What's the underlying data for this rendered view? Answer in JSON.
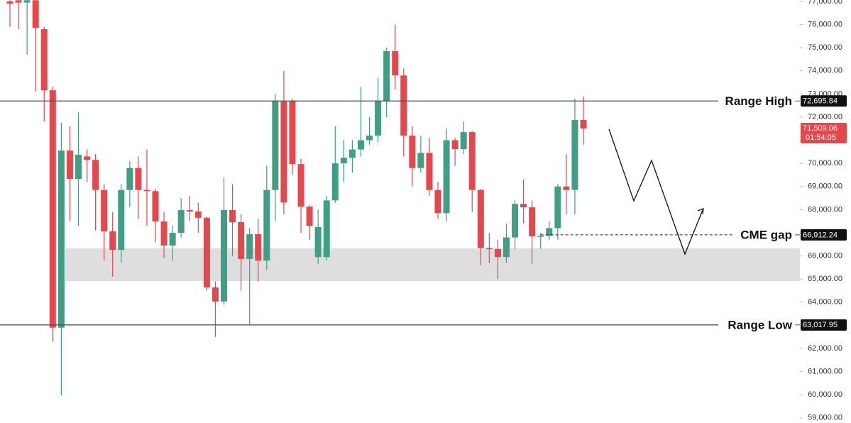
{
  "chart_data": {
    "type": "candlestick",
    "open": [
      77000,
      77050,
      76950,
      77050,
      75800,
      73160,
      62900,
      70550,
      69330,
      70300,
      70150,
      68850,
      67060,
      66260,
      68850,
      69800,
      68850,
      68800,
      67490,
      66450,
      67000,
      67980,
      67920,
      67650,
      64640,
      64030,
      67980,
      67460,
      65870,
      66940,
      65800,
      68850,
      72700,
      72700,
      69970,
      68130,
      65950,
      65950,
      68400,
      70000,
      70240,
      70600,
      71000,
      71200,
      72700,
      74850,
      73800,
      71200,
      69800,
      70450,
      68850,
      67850,
      71000,
      70620,
      71350,
      68850,
      66350,
      66300,
      65950,
      66800,
      68250,
      68100,
      66850,
      66870,
      67200,
      69000,
      68850,
      71880
    ],
    "high": [
      77050,
      77060,
      77060,
      77060,
      75900,
      73300,
      71750,
      71600,
      72200,
      70600,
      70400,
      69100,
      67900,
      69100,
      70100,
      70300,
      70600,
      68900,
      67900,
      67300,
      68500,
      68600,
      68300,
      67700,
      64900,
      69400,
      69100,
      67800,
      67200,
      67600,
      69900,
      73000,
      74000,
      72800,
      70200,
      68200,
      68000,
      68600,
      71600,
      71000,
      71000,
      73300,
      72000,
      73700,
      75000,
      76000,
      74100,
      71600,
      71200,
      71100,
      69200,
      71500,
      71100,
      71800,
      71400,
      68900,
      67000,
      66700,
      67400,
      68400,
      69300,
      68400,
      67000,
      67500,
      69100,
      70400,
      72800,
      72900
    ],
    "low": [
      75900,
      75800,
      74700,
      73100,
      71800,
      62300,
      59975,
      67500,
      67300,
      69200,
      67100,
      65800,
      65100,
      65700,
      68100,
      67600,
      67300,
      66600,
      65900,
      65800,
      66800,
      67500,
      67000,
      64500,
      62500,
      63900,
      66000,
      64500,
      63050,
      64900,
      65400,
      67500,
      67800,
      69500,
      67000,
      66700,
      65650,
      65800,
      68300,
      69200,
      69600,
      70300,
      70800,
      70900,
      72000,
      73200,
      70300,
      69000,
      69600,
      68600,
      67600,
      67500,
      69900,
      70400,
      67900,
      65600,
      65700,
      65000,
      65700,
      66300,
      67400,
      65650,
      66300,
      66700,
      66700,
      67800,
      67800,
      70800
    ],
    "close": [
      76900,
      76950,
      77050,
      75850,
      73160,
      62900,
      70550,
      69330,
      70370,
      70150,
      68850,
      67060,
      66260,
      68850,
      69800,
      68850,
      68800,
      67490,
      66450,
      67000,
      67980,
      67920,
      67650,
      64640,
      64030,
      67980,
      67460,
      65870,
      66940,
      65800,
      68850,
      72700,
      68310,
      69970,
      68130,
      67300,
      67250,
      68400,
      70000,
      70240,
      70600,
      71000,
      71200,
      72700,
      74850,
      73800,
      71200,
      69800,
      70450,
      68850,
      67850,
      71000,
      70620,
      71350,
      68850,
      66350,
      66300,
      65950,
      66800,
      68250,
      68100,
      66850,
      66870,
      67200,
      69000,
      68850,
      71880,
      71509.06
    ],
    "up_color": "#3f9e84",
    "down_color": "#e5474d",
    "ylim": [
      58780,
      77060
    ],
    "yticks": [
      {
        "value": 59000,
        "label": "59,000.00"
      },
      {
        "value": 60000,
        "label": "60,000.00"
      },
      {
        "value": 61000,
        "label": "61,000.00"
      },
      {
        "value": 62000,
        "label": "62,000.00"
      },
      {
        "value": 63000,
        "label": "63,000.00"
      },
      {
        "value": 64000,
        "label": "64,000.00"
      },
      {
        "value": 65000,
        "label": "65,000.00"
      },
      {
        "value": 66000,
        "label": "66,000.00"
      },
      {
        "value": 67000,
        "label": "67,000.00"
      },
      {
        "value": 68000,
        "label": "68,000.00"
      },
      {
        "value": 69000,
        "label": "69,000.00"
      },
      {
        "value": 70000,
        "label": "70,000.00"
      },
      {
        "value": 71000,
        "label": "71,000.00"
      },
      {
        "value": 72000,
        "label": "72,000.00"
      },
      {
        "value": 73000,
        "label": "73,000.00"
      },
      {
        "value": 74000,
        "label": "74,000.00"
      },
      {
        "value": 75000,
        "label": "75,000.00"
      },
      {
        "value": 76000,
        "label": "76,000.00"
      },
      {
        "value": 77000,
        "label": "77,000.00"
      }
    ],
    "gap_zone": [
      64914,
      66325
    ],
    "levels": [
      {
        "name": "Range High",
        "value": 72695.84,
        "label": "72,695.84",
        "style": "solid"
      },
      {
        "name": "CME gap",
        "value": 66912.24,
        "label": "66,912.24",
        "style": "dashed"
      },
      {
        "name": "Range Low",
        "value": 63017.95,
        "label": "63,017.95",
        "style": "solid"
      }
    ],
    "last_price": {
      "value": 71509.06,
      "label": "71,509.06",
      "countdown": "01:54:05"
    }
  }
}
